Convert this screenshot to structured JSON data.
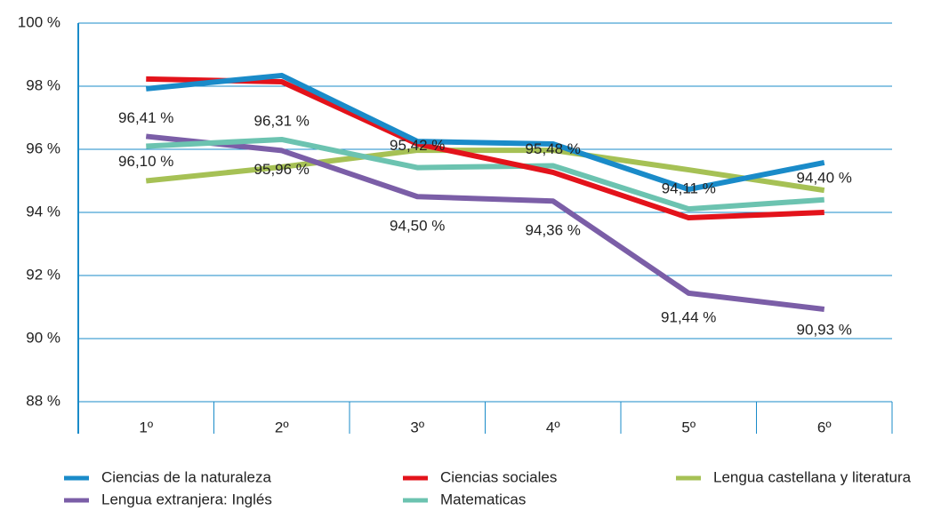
{
  "chart_data": {
    "type": "line",
    "categories": [
      "1º",
      "2º",
      "3º",
      "4º",
      "5º",
      "6º"
    ],
    "series": [
      {
        "name": "Ciencias de la naturaleza",
        "color": "#1a8bc9",
        "values": [
          97.92,
          98.34,
          96.25,
          96.17,
          94.73,
          95.58
        ]
      },
      {
        "name": "Ciencias sociales",
        "color": "#e3131b",
        "values": [
          98.23,
          98.14,
          96.17,
          95.27,
          93.83,
          94.0
        ]
      },
      {
        "name": "Lengua castellana y literatura",
        "color": "#a6c155",
        "values": [
          95.0,
          95.44,
          95.97,
          95.97,
          95.35,
          94.7
        ]
      },
      {
        "name": "Lengua extranjera: Inglés",
        "color": "#7b5ea7",
        "values": [
          96.41,
          95.96,
          94.5,
          94.36,
          91.44,
          90.93
        ],
        "value_labels": [
          "96,41 %",
          "95,96 %",
          "94,50 %",
          "94,36 %",
          "91,44 %",
          "90,93 %"
        ]
      },
      {
        "name": "Matematicas",
        "color": "#6cc3b0",
        "values": [
          96.1,
          96.31,
          95.42,
          95.48,
          94.11,
          94.4
        ],
        "value_labels": [
          "96,10 %",
          "96,31 %",
          "95,42 %",
          "95,48 %",
          "94,11 %",
          "94,40 %"
        ]
      }
    ],
    "ylim": [
      88,
      100
    ],
    "yticks": [
      {
        "value": 88,
        "label": "88 %"
      },
      {
        "value": 90,
        "label": "90 %"
      },
      {
        "value": 92,
        "label": "92 %"
      },
      {
        "value": 94,
        "label": "94 %"
      },
      {
        "value": 96,
        "label": "96 %"
      },
      {
        "value": 98,
        "label": "98 %"
      },
      {
        "value": 100,
        "label": "100 %"
      }
    ],
    "grid": true
  }
}
